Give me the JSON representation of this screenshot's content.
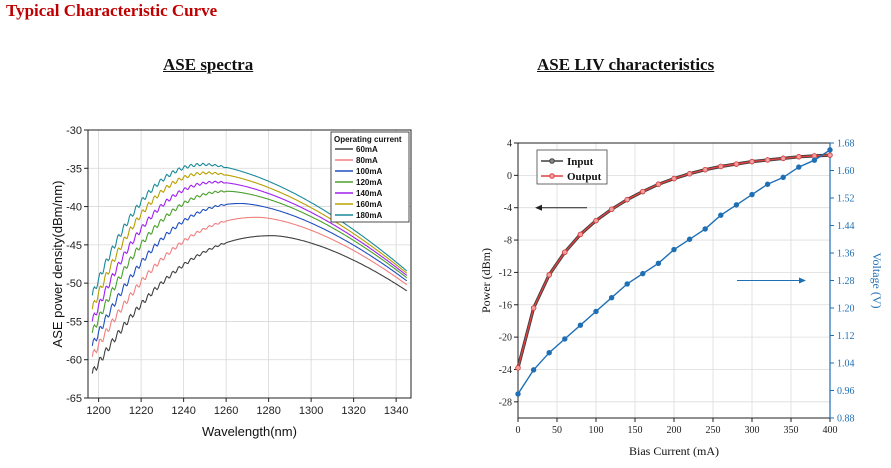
{
  "page": {
    "title": "Typical Characteristic Curve"
  },
  "chart_data": [
    {
      "type": "line",
      "heading": "ASE spectra",
      "xlabel": "Wavelength(nm)",
      "ylabel": "ASE power density(dBm/nm)",
      "xlim": [
        1195,
        1347
      ],
      "ylim": [
        -65,
        -30
      ],
      "xticks": [
        1200,
        1220,
        1240,
        1260,
        1280,
        1300,
        1320,
        1340
      ],
      "yticks": [
        -30,
        -35,
        -40,
        -45,
        -50,
        -55,
        -60,
        -65
      ],
      "grid": true,
      "legend_title": "Operating current",
      "legend_position": "top-right",
      "series": [
        {
          "name": "60mA",
          "color": "#404040",
          "peak_x": 1282,
          "peak_y": -43.8,
          "start_y": -61.8,
          "end_y": -51.0
        },
        {
          "name": "80mA",
          "color": "#f08080",
          "peak_x": 1275,
          "peak_y": -41.4,
          "start_y": -59.6,
          "end_y": -50.2
        },
        {
          "name": "100mA",
          "color": "#1f4fbf",
          "peak_x": 1267,
          "peak_y": -39.6,
          "start_y": -58.2,
          "end_y": -49.7
        },
        {
          "name": "120mA",
          "color": "#4aa02c",
          "peak_x": 1261,
          "peak_y": -38.0,
          "start_y": -56.5,
          "end_y": -49.3
        },
        {
          "name": "140mA",
          "color": "#a020f0",
          "peak_x": 1256,
          "peak_y": -36.8,
          "start_y": -55.0,
          "end_y": -49.0
        },
        {
          "name": "160mA",
          "color": "#b8a000",
          "peak_x": 1252,
          "peak_y": -35.6,
          "start_y": -53.4,
          "end_y": -48.7
        },
        {
          "name": "180mA",
          "color": "#1a8a9a",
          "peak_x": 1250,
          "peak_y": -34.5,
          "start_y": -51.6,
          "end_y": -48.4
        }
      ]
    },
    {
      "type": "line",
      "heading": "ASE LIV characteristics",
      "xlabel": "Bias Current (mA)",
      "ylabel": "Power (dBm)",
      "y2label": "Voltage (V)",
      "xlim": [
        0,
        400
      ],
      "ylim": [
        -30,
        4
      ],
      "y2lim": [
        0.88,
        1.68
      ],
      "xticks": [
        0,
        50,
        100,
        150,
        200,
        250,
        300,
        350,
        400
      ],
      "yticks": [
        4,
        0,
        -4,
        -8,
        -12,
        -16,
        -20,
        -24,
        -28
      ],
      "y2ticks": [
        1.68,
        1.6,
        1.52,
        1.44,
        1.36,
        1.28,
        1.2,
        1.12,
        1.04,
        0.96,
        0.88
      ],
      "grid": true,
      "legend_position": "top-left",
      "x": [
        0,
        20,
        40,
        60,
        80,
        100,
        120,
        140,
        160,
        180,
        200,
        220,
        240,
        260,
        280,
        300,
        320,
        340,
        360,
        380,
        400
      ],
      "series": [
        {
          "name": "Input",
          "color": "#404040",
          "axis": "left",
          "values": [
            -23.8,
            -16.4,
            -12.3,
            -9.5,
            -7.3,
            -5.6,
            -4.2,
            -3.0,
            -2.0,
            -1.1,
            -0.4,
            0.2,
            0.7,
            1.1,
            1.4,
            1.7,
            1.9,
            2.1,
            2.3,
            2.4,
            2.5
          ]
        },
        {
          "name": "Output",
          "color": "#e04040",
          "axis": "left",
          "values": [
            -23.8,
            -16.4,
            -12.3,
            -9.5,
            -7.3,
            -5.6,
            -4.2,
            -3.0,
            -2.0,
            -1.1,
            -0.4,
            0.2,
            0.7,
            1.1,
            1.4,
            1.7,
            1.9,
            2.1,
            2.3,
            2.4,
            2.5
          ]
        },
        {
          "name": "Voltage",
          "color": "#1f6fb4",
          "axis": "right",
          "values": [
            0.95,
            1.02,
            1.07,
            1.11,
            1.15,
            1.19,
            1.23,
            1.27,
            1.3,
            1.33,
            1.37,
            1.4,
            1.43,
            1.47,
            1.5,
            1.53,
            1.56,
            1.58,
            1.61,
            1.63,
            1.66
          ]
        }
      ]
    }
  ]
}
